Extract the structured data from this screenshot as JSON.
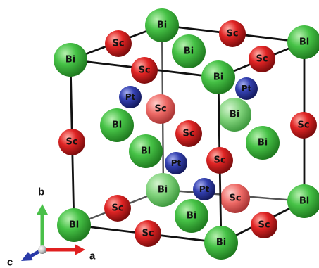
{
  "colors": {
    "bi": "#3cb83c",
    "sc": "#d81e1e",
    "pt": "#2d38a6",
    "axis_a": "#e02020",
    "axis_b": "#49c049",
    "axis_c": "#2a3aa8"
  },
  "labels": {
    "bi": "Bi",
    "sc": "Sc",
    "pt": "Pt"
  },
  "axes": {
    "a": "a",
    "b": "b",
    "c": "c"
  }
}
